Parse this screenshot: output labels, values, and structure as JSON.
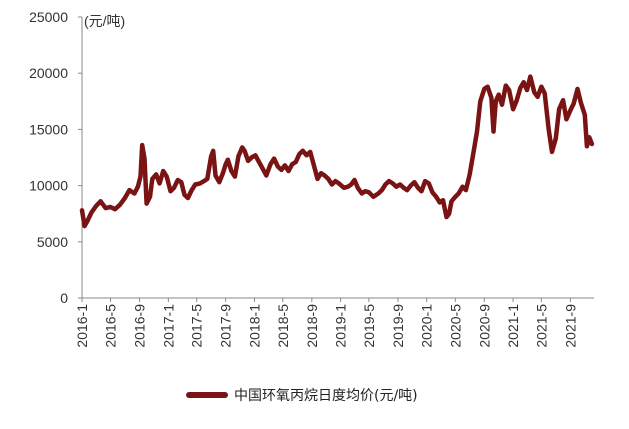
{
  "chart_data": {
    "type": "line",
    "title": "",
    "ylabel": "(元/吨)",
    "xlabel": "",
    "ylim": [
      0,
      25000
    ],
    "yticks": [
      "0",
      "5000",
      "10000",
      "15000",
      "20000",
      "25000"
    ],
    "x_tick_labels": [
      "2016-1",
      "2016-5",
      "2016-9",
      "2017-1",
      "2017-5",
      "2017-9",
      "2018-1",
      "2018-5",
      "2018-9",
      "2019-1",
      "2019-5",
      "2019-9",
      "2020-1",
      "2020-5",
      "2020-9",
      "2021-1",
      "2021-5",
      "2021-9"
    ],
    "grid": false,
    "legend_position": "bottom",
    "series": [
      {
        "name": "中国环氧丙烷日度均价(元/吨)",
        "color": "#7a1414",
        "points": [
          [
            "2016-01-01",
            7800
          ],
          [
            "2016-01-12",
            6400
          ],
          [
            "2016-01-25",
            6900
          ],
          [
            "2016-02-10",
            7600
          ],
          [
            "2016-03-01",
            8200
          ],
          [
            "2016-03-20",
            8600
          ],
          [
            "2016-04-10",
            8000
          ],
          [
            "2016-05-01",
            8100
          ],
          [
            "2016-05-20",
            7900
          ],
          [
            "2016-06-10",
            8300
          ],
          [
            "2016-07-01",
            8900
          ],
          [
            "2016-07-20",
            9600
          ],
          [
            "2016-08-10",
            9300
          ],
          [
            "2016-08-25",
            9900
          ],
          [
            "2016-09-05",
            10800
          ],
          [
            "2016-09-12",
            13600
          ],
          [
            "2016-09-22",
            12400
          ],
          [
            "2016-10-01",
            8400
          ],
          [
            "2016-10-15",
            9000
          ],
          [
            "2016-10-25",
            10600
          ],
          [
            "2016-11-10",
            11000
          ],
          [
            "2016-11-25",
            10200
          ],
          [
            "2016-12-10",
            11300
          ],
          [
            "2016-12-25",
            10800
          ],
          [
            "2017-01-10",
            9500
          ],
          [
            "2017-01-25",
            9800
          ],
          [
            "2017-02-10",
            10500
          ],
          [
            "2017-02-25",
            10300
          ],
          [
            "2017-03-10",
            9200
          ],
          [
            "2017-03-25",
            8900
          ],
          [
            "2017-04-10",
            9600
          ],
          [
            "2017-04-25",
            10100
          ],
          [
            "2017-05-15",
            10200
          ],
          [
            "2017-06-01",
            10400
          ],
          [
            "2017-06-15",
            10600
          ],
          [
            "2017-07-01",
            12600
          ],
          [
            "2017-07-10",
            13100
          ],
          [
            "2017-07-20",
            10900
          ],
          [
            "2017-08-05",
            10300
          ],
          [
            "2017-08-20",
            11100
          ],
          [
            "2017-09-01",
            11900
          ],
          [
            "2017-09-10",
            12300
          ],
          [
            "2017-09-25",
            11300
          ],
          [
            "2017-10-10",
            10800
          ],
          [
            "2017-10-25",
            12600
          ],
          [
            "2017-11-10",
            13400
          ],
          [
            "2017-11-20",
            13100
          ],
          [
            "2017-12-05",
            12200
          ],
          [
            "2017-12-20",
            12500
          ],
          [
            "2018-01-05",
            12700
          ],
          [
            "2018-01-20",
            12100
          ],
          [
            "2018-02-05",
            11500
          ],
          [
            "2018-02-20",
            10900
          ],
          [
            "2018-03-10",
            11900
          ],
          [
            "2018-03-25",
            12400
          ],
          [
            "2018-04-10",
            11700
          ],
          [
            "2018-04-25",
            11400
          ],
          [
            "2018-05-10",
            11800
          ],
          [
            "2018-05-25",
            11300
          ],
          [
            "2018-06-10",
            11900
          ],
          [
            "2018-06-25",
            12100
          ],
          [
            "2018-07-10",
            12800
          ],
          [
            "2018-07-25",
            13100
          ],
          [
            "2018-08-10",
            12700
          ],
          [
            "2018-08-25",
            13000
          ],
          [
            "2018-09-10",
            11800
          ],
          [
            "2018-09-25",
            10600
          ],
          [
            "2018-10-10",
            11100
          ],
          [
            "2018-10-25",
            10900
          ],
          [
            "2018-11-10",
            10600
          ],
          [
            "2018-11-25",
            10100
          ],
          [
            "2018-12-10",
            10400
          ],
          [
            "2018-12-25",
            10200
          ],
          [
            "2019-01-15",
            9800
          ],
          [
            "2019-02-01",
            9900
          ],
          [
            "2019-02-15",
            10100
          ],
          [
            "2019-03-01",
            10500
          ],
          [
            "2019-03-15",
            9800
          ],
          [
            "2019-04-01",
            9300
          ],
          [
            "2019-04-15",
            9500
          ],
          [
            "2019-05-01",
            9400
          ],
          [
            "2019-05-20",
            9000
          ],
          [
            "2019-06-10",
            9300
          ],
          [
            "2019-06-25",
            9600
          ],
          [
            "2019-07-10",
            10100
          ],
          [
            "2019-07-25",
            10400
          ],
          [
            "2019-08-10",
            10200
          ],
          [
            "2019-08-25",
            9900
          ],
          [
            "2019-09-10",
            10100
          ],
          [
            "2019-09-25",
            9800
          ],
          [
            "2019-10-10",
            9600
          ],
          [
            "2019-10-25",
            10000
          ],
          [
            "2019-11-10",
            10300
          ],
          [
            "2019-11-25",
            9800
          ],
          [
            "2019-12-10",
            9500
          ],
          [
            "2019-12-25",
            10400
          ],
          [
            "2020-01-10",
            10200
          ],
          [
            "2020-01-25",
            9400
          ],
          [
            "2020-02-10",
            9000
          ],
          [
            "2020-02-25",
            8500
          ],
          [
            "2020-03-10",
            8700
          ],
          [
            "2020-03-25",
            7200
          ],
          [
            "2020-04-05",
            7500
          ],
          [
            "2020-04-15",
            8600
          ],
          [
            "2020-05-01",
            9000
          ],
          [
            "2020-05-15",
            9300
          ],
          [
            "2020-06-01",
            9900
          ],
          [
            "2020-06-15",
            9600
          ],
          [
            "2020-07-01",
            11000
          ],
          [
            "2020-07-15",
            12700
          ],
          [
            "2020-08-01",
            14800
          ],
          [
            "2020-08-15",
            17500
          ],
          [
            "2020-09-01",
            18600
          ],
          [
            "2020-09-15",
            18800
          ],
          [
            "2020-10-01",
            17800
          ],
          [
            "2020-10-10",
            14800
          ],
          [
            "2020-10-20",
            17500
          ],
          [
            "2020-11-01",
            18100
          ],
          [
            "2020-11-15",
            17200
          ],
          [
            "2020-12-01",
            18900
          ],
          [
            "2020-12-15",
            18500
          ],
          [
            "2021-01-01",
            16800
          ],
          [
            "2021-01-15",
            17500
          ],
          [
            "2021-02-01",
            18700
          ],
          [
            "2021-02-15",
            19200
          ],
          [
            "2021-03-01",
            18500
          ],
          [
            "2021-03-15",
            19700
          ],
          [
            "2021-04-01",
            18300
          ],
          [
            "2021-04-15",
            17900
          ],
          [
            "2021-05-01",
            18800
          ],
          [
            "2021-05-15",
            18200
          ],
          [
            "2021-06-01",
            15000
          ],
          [
            "2021-06-15",
            13000
          ],
          [
            "2021-07-01",
            14200
          ],
          [
            "2021-07-15",
            16800
          ],
          [
            "2021-08-01",
            17600
          ],
          [
            "2021-08-15",
            15900
          ],
          [
            "2021-09-01",
            16700
          ],
          [
            "2021-09-15",
            17300
          ],
          [
            "2021-10-01",
            18600
          ],
          [
            "2021-10-15",
            17400
          ],
          [
            "2021-11-01",
            16300
          ],
          [
            "2021-11-10",
            13500
          ],
          [
            "2021-11-20",
            14300
          ],
          [
            "2021-12-01",
            13700
          ]
        ]
      }
    ]
  }
}
